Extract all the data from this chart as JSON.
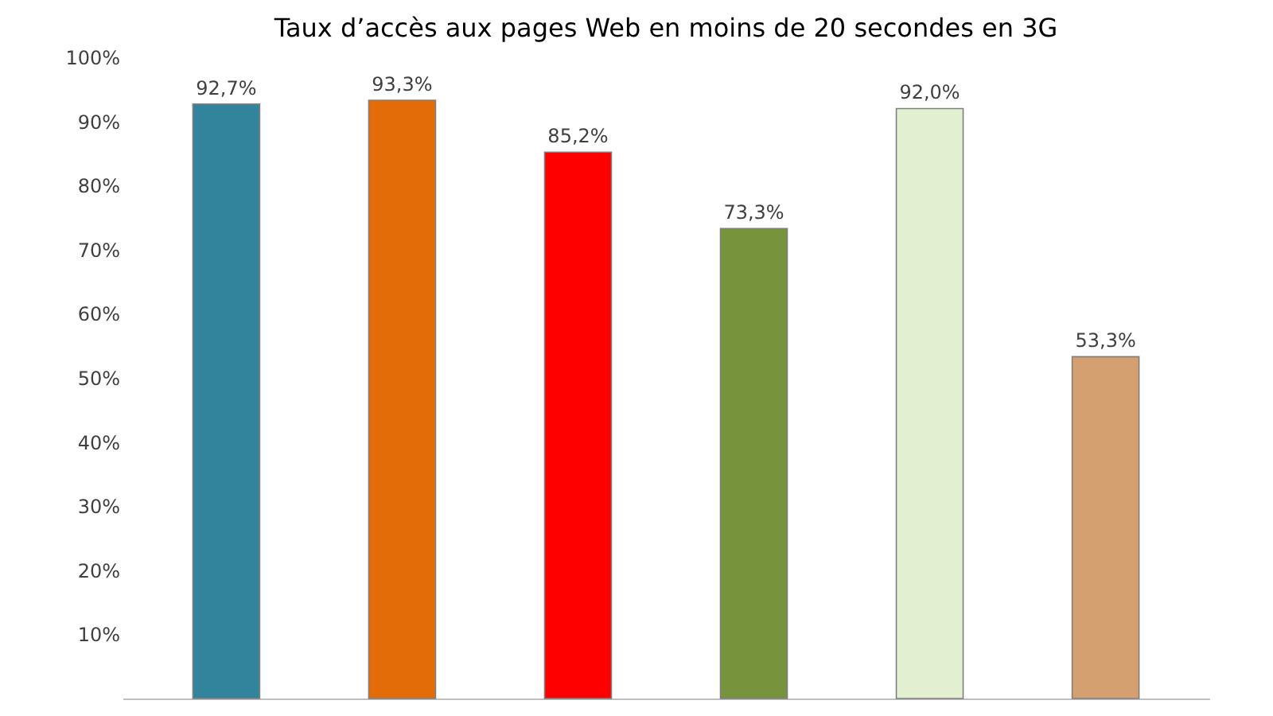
{
  "chart_data": {
    "type": "bar",
    "title": "Taux d’accès aux pages Web en moins de 20 secondes en 3G",
    "categories": [
      null,
      null,
      null,
      null,
      null,
      null
    ],
    "values": [
      92.7,
      93.3,
      85.2,
      73.3,
      92.0,
      53.3
    ],
    "colors": [
      "#31849b",
      "#e36c09",
      "#ff0000",
      "#77933c",
      "#e2efd0",
      "#d4a070"
    ],
    "value_labels": [
      "92,7%",
      "93,3%",
      "85,2%",
      "73,3%",
      "92,0%",
      "53,3%"
    ],
    "ylim": [
      0,
      100
    ],
    "yticks": [
      {
        "value": 10,
        "label": "10%"
      },
      {
        "value": 20,
        "label": "20%"
      },
      {
        "value": 30,
        "label": "30%"
      },
      {
        "value": 40,
        "label": "40%"
      },
      {
        "value": 50,
        "label": "50%"
      },
      {
        "value": 60,
        "label": "60%"
      },
      {
        "value": 70,
        "label": "70%"
      },
      {
        "value": 80,
        "label": "80%"
      },
      {
        "value": 90,
        "label": "90%"
      },
      {
        "value": 100,
        "label": "100%"
      }
    ],
    "grid": false
  }
}
